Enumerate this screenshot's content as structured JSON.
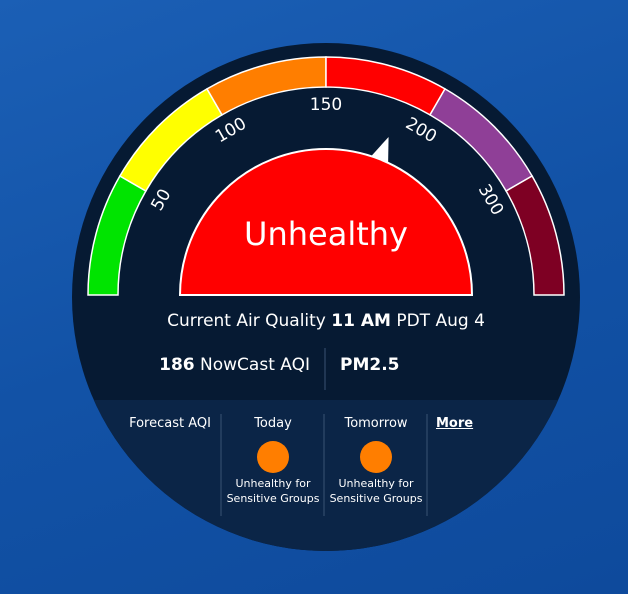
{
  "gauge": {
    "range": [
      0,
      500
    ],
    "ticks": [
      50,
      100,
      150,
      200,
      300
    ],
    "colors": [
      "#00e400",
      "#ffff00",
      "#ff7e00",
      "#ff0000",
      "#8f3f97",
      "#7e0023"
    ],
    "category": "Unhealthy",
    "category_color": "#ff0000"
  },
  "current": {
    "label": "Current Air Quality",
    "time": "11 AM",
    "zone": "PDT Aug 4",
    "aqi": 186,
    "aqi_label": "NowCast AQI",
    "pollutant": "PM2.5"
  },
  "forecast": {
    "label": "Forecast AQI",
    "days": [
      {
        "name": "Today",
        "category": "Unhealthy for Sensitive Groups",
        "color": "#ff7e00"
      },
      {
        "name": "Tomorrow",
        "category": "Unhealthy for Sensitive Groups",
        "color": "#ff7e00"
      }
    ],
    "more": "More"
  }
}
